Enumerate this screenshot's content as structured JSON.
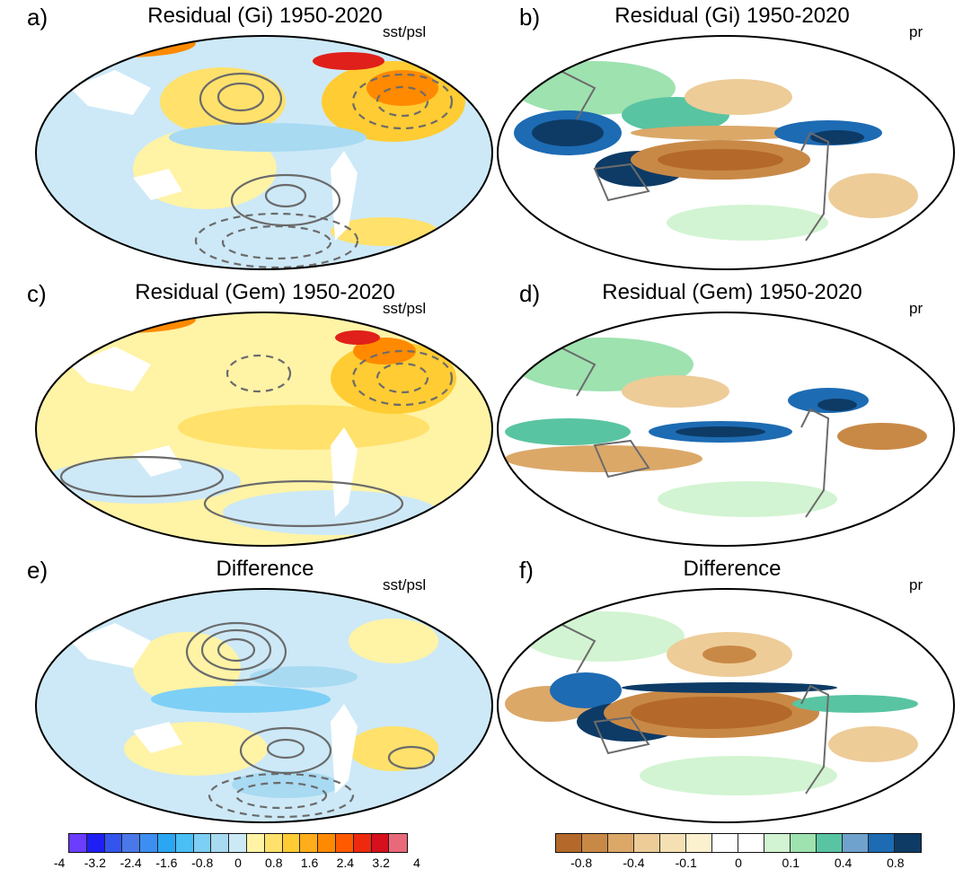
{
  "panels": [
    {
      "letter": "a)",
      "title": "Residual (Gi) 1950-2020",
      "variable": "sst/psl"
    },
    {
      "letter": "b)",
      "title": "Residual (Gi) 1950-2020",
      "variable": "pr"
    },
    {
      "letter": "c)",
      "title": "Residual (Gem) 1950-2020",
      "variable": "sst/psl"
    },
    {
      "letter": "d)",
      "title": "Residual (Gem) 1950-2020",
      "variable": "pr"
    },
    {
      "letter": "e)",
      "title": "Difference",
      "variable": "sst/psl"
    },
    {
      "letter": "f)",
      "title": "Difference",
      "variable": "pr"
    }
  ],
  "colorbars": {
    "sst": {
      "labels": [
        "-4",
        "-3.2",
        "-2.4",
        "-1.6",
        "-0.8",
        "0",
        "0.8",
        "1.6",
        "2.4",
        "3.2",
        "4"
      ],
      "colors": [
        "#6a3dff",
        "#1f1ff5",
        "#3355ee",
        "#4a78e8",
        "#3c8ff0",
        "#2ba6f2",
        "#49bff5",
        "#7dcff5",
        "#a8daf2",
        "#cce9f6",
        "#fff3a6",
        "#ffe16b",
        "#ffcc33",
        "#ffad1a",
        "#ff8a00",
        "#ff5a00",
        "#ee2a0e",
        "#d6101c",
        "#e86a7a"
      ]
    },
    "pr": {
      "labels": [
        "-0.8",
        "-0.4",
        "-0.1",
        "0",
        "0.1",
        "0.4",
        "0.8"
      ],
      "colors": [
        "#b4692a",
        "#c98946",
        "#dba868",
        "#edcc98",
        "#f4e0b3",
        "#fbf1cf",
        "#ffffff",
        "#ffffff",
        "#d2f4d2",
        "#9ee2b0",
        "#59c4a2",
        "#6fa2cc",
        "#1d6bb3",
        "#0d3b66"
      ]
    }
  }
}
